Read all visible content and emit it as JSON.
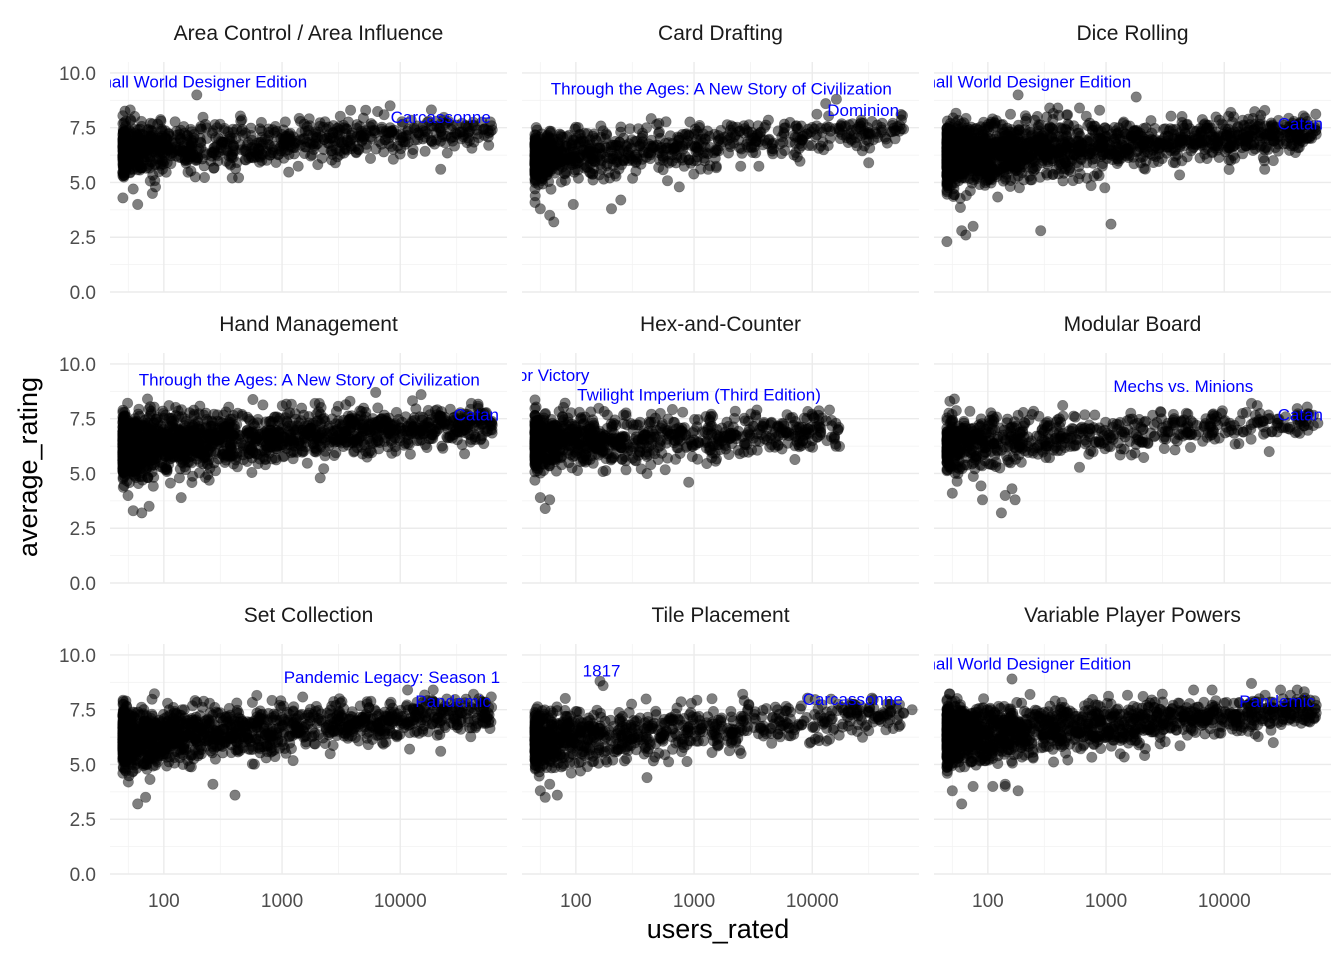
{
  "chart_data": {
    "type": "scatter",
    "xlabel": "users_rated",
    "ylabel": "average_rating",
    "x_scale": "log10",
    "xlim": [
      35,
      80000
    ],
    "ylim": [
      0,
      10.5
    ],
    "x_ticks": [
      {
        "v": 100,
        "label": "100"
      },
      {
        "v": 1000,
        "label": "1000"
      },
      {
        "v": 10000,
        "label": "10000"
      }
    ],
    "y_ticks": [
      {
        "v": 0,
        "label": "0.0"
      },
      {
        "v": 2.5,
        "label": "2.5"
      },
      {
        "v": 5,
        "label": "5.0"
      },
      {
        "v": 7.5,
        "label": "7.5"
      },
      {
        "v": 10,
        "label": "10.0"
      }
    ],
    "grid": true,
    "point_color": "#000000",
    "point_alpha": 0.5,
    "label_color": "#0000ff",
    "panels": [
      {
        "title": "Area Control / Area Influence",
        "count": 900,
        "mean_start": 6.4,
        "mean_end": 7.4,
        "spread": 0.55,
        "points": [
          [
            60,
            4.0
          ],
          [
            55,
            4.7
          ],
          [
            80,
            4.5
          ],
          [
            85,
            4.8
          ],
          [
            190,
            9.0
          ],
          [
            3800,
            8.3
          ],
          [
            5100,
            8.3
          ],
          [
            8200,
            8.5
          ],
          [
            22000,
            5.6
          ],
          [
            32000,
            7.3
          ],
          [
            38000,
            7.3
          ],
          [
            60000,
            7.4
          ]
        ],
        "labels": [
          {
            "text": "Small World Designer Edition",
            "x": 190,
            "y": 9.6,
            "anchor": "middle"
          },
          {
            "text": "Carcassonne",
            "x": 22000,
            "y": 8.0,
            "anchor": "middle"
          }
        ]
      },
      {
        "title": "Card Drafting",
        "count": 800,
        "mean_start": 6.1,
        "mean_end": 7.4,
        "spread": 0.55,
        "points": [
          [
            50,
            3.8
          ],
          [
            60,
            3.5
          ],
          [
            65,
            3.2
          ],
          [
            95,
            4.0
          ],
          [
            200,
            3.8
          ],
          [
            240,
            4.2
          ],
          [
            750,
            4.8
          ],
          [
            30000,
            5.9
          ],
          [
            16000,
            8.8
          ],
          [
            13000,
            8.6
          ],
          [
            48000,
            7.7
          ],
          [
            55000,
            7.6
          ]
        ],
        "labels": [
          {
            "text": "Through the Ages: A New Story of Civilization",
            "x": 1700,
            "y": 9.3,
            "anchor": "middle"
          },
          {
            "text": "Dominion",
            "x": 27000,
            "y": 8.3,
            "anchor": "middle"
          }
        ]
      },
      {
        "title": "Dice Rolling",
        "count": 1800,
        "mean_start": 6.2,
        "mean_end": 7.3,
        "spread": 0.65,
        "points": [
          [
            45,
            2.3
          ],
          [
            60,
            2.8
          ],
          [
            65,
            2.6
          ],
          [
            75,
            3.0
          ],
          [
            280,
            2.8
          ],
          [
            1100,
            3.1
          ],
          [
            180,
            9.0
          ],
          [
            1800,
            8.9
          ],
          [
            22000,
            5.6
          ],
          [
            26000,
            6.0
          ],
          [
            60000,
            7.2
          ],
          [
            12000,
            8.0
          ]
        ],
        "labels": [
          {
            "text": "Small World Designer Edition",
            "x": 190,
            "y": 9.6,
            "anchor": "middle"
          },
          {
            "text": "Catan",
            "x": 44000,
            "y": 7.7,
            "anchor": "middle"
          }
        ]
      },
      {
        "title": "Hand Management",
        "count": 1700,
        "mean_start": 6.2,
        "mean_end": 7.3,
        "spread": 0.65,
        "points": [
          [
            55,
            3.3
          ],
          [
            65,
            3.2
          ],
          [
            75,
            3.5
          ],
          [
            140,
            3.9
          ],
          [
            2100,
            4.8
          ],
          [
            35000,
            5.9
          ],
          [
            1900,
            8.2
          ],
          [
            6200,
            8.7
          ],
          [
            15000,
            8.6
          ],
          [
            40000,
            8.2
          ],
          [
            60000,
            7.2
          ]
        ],
        "labels": [
          {
            "text": "Through the Ages: A New Story of Civilization",
            "x": 1700,
            "y": 9.3,
            "anchor": "middle"
          },
          {
            "text": "Catan",
            "x": 44000,
            "y": 7.7,
            "anchor": "middle"
          }
        ]
      },
      {
        "title": "Hex-and-Counter",
        "count": 900,
        "mean_start": 6.4,
        "mean_end": 6.9,
        "spread": 0.6,
        "points": [
          [
            55,
            3.4
          ],
          [
            60,
            3.8
          ],
          [
            50,
            3.9
          ],
          [
            900,
            4.6
          ],
          [
            400,
            5.0
          ],
          [
            1400,
            7.7
          ],
          [
            2700,
            7.4
          ],
          [
            3400,
            7.9
          ],
          [
            9000,
            7.5
          ],
          [
            14000,
            7.9
          ]
        ],
        "labels": [
          {
            "text": "A Few Acres of Snow: A Chance for Victory",
            "x": 130,
            "y": 9.5,
            "anchor": "end"
          },
          {
            "text": "Twilight Imperium (Third Edition)",
            "x": 1100,
            "y": 8.6,
            "anchor": "middle"
          }
        ],
        "x_max": 18000
      },
      {
        "title": "Modular Board",
        "count": 700,
        "mean_start": 6.3,
        "mean_end": 7.4,
        "spread": 0.55,
        "points": [
          [
            50,
            4.1
          ],
          [
            90,
            3.8
          ],
          [
            130,
            3.2
          ],
          [
            140,
            4.0
          ],
          [
            170,
            3.8
          ],
          [
            160,
            4.3
          ],
          [
            24000,
            6.0
          ],
          [
            28000,
            6.9
          ],
          [
            62000,
            7.3
          ],
          [
            17000,
            8.2
          ],
          [
            19000,
            8.1
          ]
        ],
        "labels": [
          {
            "text": "Mechs vs. Minions",
            "x": 4500,
            "y": 9.0,
            "anchor": "middle"
          },
          {
            "text": "Catan",
            "x": 44000,
            "y": 7.7,
            "anchor": "middle"
          }
        ]
      },
      {
        "title": "Set Collection",
        "count": 1400,
        "mean_start": 6.1,
        "mean_end": 7.4,
        "spread": 0.6,
        "points": [
          [
            50,
            4.2
          ],
          [
            60,
            3.2
          ],
          [
            70,
            3.5
          ],
          [
            400,
            3.6
          ],
          [
            260,
            4.1
          ],
          [
            22000,
            5.6
          ],
          [
            12000,
            5.7
          ],
          [
            19000,
            8.4
          ],
          [
            52000,
            7.7
          ],
          [
            40000,
            7.6
          ]
        ],
        "labels": [
          {
            "text": "Pandemic Legacy: Season 1",
            "x": 8500,
            "y": 9.0,
            "anchor": "middle"
          },
          {
            "text": "Pandemic",
            "x": 28000,
            "y": 7.9,
            "anchor": "middle"
          }
        ]
      },
      {
        "title": "Tile Placement",
        "count": 900,
        "mean_start": 6.1,
        "mean_end": 7.3,
        "spread": 0.6,
        "points": [
          [
            50,
            3.8
          ],
          [
            55,
            3.5
          ],
          [
            60,
            4.1
          ],
          [
            400,
            4.4
          ],
          [
            160,
            8.8
          ],
          [
            170,
            8.6
          ],
          [
            70000,
            7.5
          ],
          [
            20000,
            7.4
          ],
          [
            2500,
            5.5
          ]
        ],
        "labels": [
          {
            "text": "1817",
            "x": 165,
            "y": 9.3,
            "anchor": "middle"
          },
          {
            "text": "Carcassonne",
            "x": 22000,
            "y": 8.0,
            "anchor": "middle"
          }
        ]
      },
      {
        "title": "Variable Player Powers",
        "count": 1400,
        "mean_start": 6.3,
        "mean_end": 7.5,
        "spread": 0.6,
        "points": [
          [
            50,
            3.8
          ],
          [
            60,
            3.2
          ],
          [
            75,
            4.0
          ],
          [
            110,
            4.0
          ],
          [
            140,
            4.1
          ],
          [
            140,
            4.0
          ],
          [
            180,
            3.8
          ],
          [
            160,
            8.9
          ],
          [
            17000,
            8.7
          ],
          [
            26000,
            6.0
          ],
          [
            48000,
            7.9
          ],
          [
            60000,
            7.7
          ]
        ],
        "labels": [
          {
            "text": "Small World Designer Edition",
            "x": 190,
            "y": 9.6,
            "anchor": "middle"
          },
          {
            "text": "Pandemic",
            "x": 28000,
            "y": 7.9,
            "anchor": "middle"
          }
        ]
      }
    ]
  }
}
